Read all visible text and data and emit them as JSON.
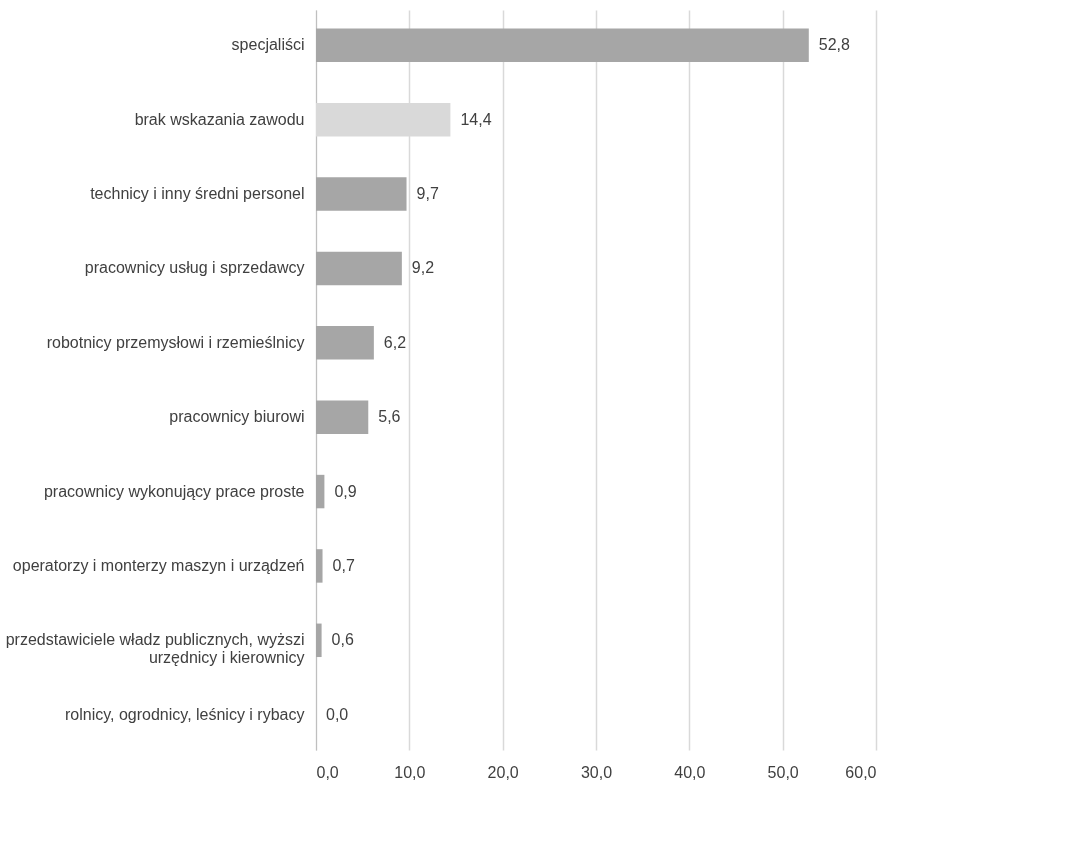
{
  "chart_data": {
    "type": "bar",
    "orientation": "horizontal",
    "categories": [
      "specjaliści",
      "brak wskazania zawodu",
      "technicy i inny średni personel",
      "pracownicy usług i sprzedawcy",
      "robotnicy przemysłowi i rzemieślnicy",
      "pracownicy biurowi",
      "pracownicy wykonujący prace proste",
      "operatorzy i monterzy maszyn i urządzeń",
      "przedstawiciele władz publicznych, wyższi urzędnicy i kierownicy",
      "rolnicy, ogrodnicy, leśnicy i rybacy"
    ],
    "values": [
      52.8,
      14.4,
      9.7,
      9.2,
      6.2,
      5.6,
      0.9,
      0.7,
      0.6,
      0.0
    ],
    "value_labels": [
      "52,8",
      "14,4",
      "9,7",
      "9,2",
      "6,2",
      "5,6",
      "0,9",
      "0,7",
      "0,6",
      "0,0"
    ],
    "colors": [
      "#a6a6a6",
      "#d9d9d9",
      "#a6a6a6",
      "#a6a6a6",
      "#a6a6a6",
      "#a6a6a6",
      "#a6a6a6",
      "#a6a6a6",
      "#a6a6a6",
      "#a6a6a6"
    ],
    "xlim": [
      0,
      60
    ],
    "xticks": [
      {
        "value": 0,
        "label": "0,0"
      },
      {
        "value": 10,
        "label": "10,0"
      },
      {
        "value": 20,
        "label": "20,0"
      },
      {
        "value": 30,
        "label": "30,0"
      },
      {
        "value": 40,
        "label": "40,0"
      },
      {
        "value": 50,
        "label": "50,0"
      },
      {
        "value": 60,
        "label": "60,0"
      }
    ],
    "grid": "x"
  }
}
